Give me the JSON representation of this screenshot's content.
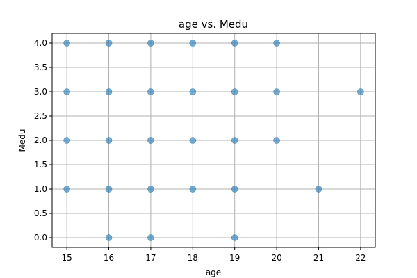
{
  "chart_data": {
    "type": "scatter",
    "title": "age vs. Medu",
    "xlabel": "age",
    "ylabel": "Medu",
    "xlim": [
      14.65,
      22.35
    ],
    "ylim": [
      -0.2,
      4.2
    ],
    "xticks": [
      15,
      16,
      17,
      18,
      19,
      20,
      21,
      22
    ],
    "xtick_labels": [
      "15",
      "16",
      "17",
      "18",
      "19",
      "20",
      "21",
      "22"
    ],
    "yticks": [
      0.0,
      0.5,
      1.0,
      1.5,
      2.0,
      2.5,
      3.0,
      3.5,
      4.0
    ],
    "ytick_labels": [
      "0.0",
      "0.5",
      "1.0",
      "1.5",
      "2.0",
      "2.5",
      "3.0",
      "3.5",
      "4.0"
    ],
    "grid": true,
    "marker_color": "#1f77b4",
    "marker_opacity": 0.6,
    "points": [
      {
        "x": 15,
        "y": 4
      },
      {
        "x": 15,
        "y": 3
      },
      {
        "x": 15,
        "y": 2
      },
      {
        "x": 15,
        "y": 1
      },
      {
        "x": 16,
        "y": 4
      },
      {
        "x": 16,
        "y": 3
      },
      {
        "x": 16,
        "y": 2
      },
      {
        "x": 16,
        "y": 1
      },
      {
        "x": 16,
        "y": 0
      },
      {
        "x": 17,
        "y": 4
      },
      {
        "x": 17,
        "y": 3
      },
      {
        "x": 17,
        "y": 2
      },
      {
        "x": 17,
        "y": 1
      },
      {
        "x": 17,
        "y": 0
      },
      {
        "x": 18,
        "y": 4
      },
      {
        "x": 18,
        "y": 3
      },
      {
        "x": 18,
        "y": 2
      },
      {
        "x": 18,
        "y": 1
      },
      {
        "x": 19,
        "y": 4
      },
      {
        "x": 19,
        "y": 3
      },
      {
        "x": 19,
        "y": 2
      },
      {
        "x": 19,
        "y": 1
      },
      {
        "x": 19,
        "y": 0
      },
      {
        "x": 20,
        "y": 4
      },
      {
        "x": 20,
        "y": 3
      },
      {
        "x": 20,
        "y": 2
      },
      {
        "x": 21,
        "y": 1
      },
      {
        "x": 22,
        "y": 3
      }
    ]
  }
}
